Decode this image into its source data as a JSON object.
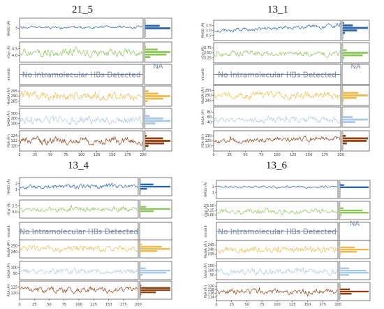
{
  "chart_data": [
    {
      "type": "line",
      "title": "21_5",
      "x_ticks": [
        "0",
        "25",
        "50",
        "75",
        "100",
        "125",
        "150",
        "175",
        "200"
      ],
      "xlim": [
        0,
        200
      ],
      "no_hb_text": "No Intramolecular HBs Detected",
      "na_text": "NA",
      "series": [
        {
          "ylabel": "RMSD (Å)",
          "yticks": [
            "3"
          ],
          "color": "#2a64ad",
          "range": [
            1.5,
            4.5
          ],
          "base": 3.1,
          "amp": 0.18,
          "drift": 0.08,
          "seed": 11
        },
        {
          "ylabel": "rGyr (Å)",
          "yticks": [
            "4.5",
            "4.0"
          ],
          "color": "#8cc65a",
          "range": [
            3.7,
            4.9
          ],
          "base": 4.3,
          "amp": 0.22,
          "drift": 0.0,
          "seed": 12
        },
        {
          "ylabel": "intraHB",
          "yticks": [],
          "color": "#7588a6",
          "range": [
            0,
            1
          ],
          "base": 0.5,
          "amp": 0,
          "drift": 0,
          "seed": 13,
          "flat": true
        },
        {
          "ylabel": "MolSA (Å²)",
          "yticks": [
            "295",
            "290",
            "285"
          ],
          "color": "#f0b94b",
          "range": [
            282,
            298
          ],
          "base": 290,
          "amp": 3.0,
          "drift": 0.0,
          "seed": 14
        },
        {
          "ylabel": "SASA (Å²)",
          "yticks": [
            "300",
            "200",
            "100"
          ],
          "color": "#a9c8e6",
          "range": [
            80,
            340
          ],
          "base": 185,
          "amp": 45,
          "drift": 0.0,
          "seed": 15
        },
        {
          "ylabel": "PSA (Å²)",
          "yticks": [
            "124",
            "122",
            "120"
          ],
          "color": "#8e3e0f",
          "range": [
            118,
            126
          ],
          "base": 122,
          "amp": 1.3,
          "drift": 0.0,
          "seed": 16
        }
      ]
    },
    {
      "type": "line",
      "title": "13_1",
      "x_ticks": [
        "0",
        "25",
        "50",
        "75",
        "100",
        "125",
        "150",
        "175",
        "200"
      ],
      "xlim": [
        0,
        200
      ],
      "no_hb_text": "No Intramolecular HBs Detected",
      "na_text": "NA",
      "series": [
        {
          "ylabel": "RMSD (Å)",
          "yticks": [
            "1.5",
            "1.0",
            "0.5"
          ],
          "color": "#2a64ad",
          "range": [
            0.3,
            1.6
          ],
          "base": 0.95,
          "amp": 0.12,
          "drift": 0.35,
          "seed": 21
        },
        {
          "ylabel": "rGyr (Å)",
          "yticks": [
            "3.75",
            "3.50",
            "3.25"
          ],
          "color": "#8cc65a",
          "range": [
            3.2,
            3.85
          ],
          "base": 3.5,
          "amp": 0.09,
          "drift": 0.0,
          "seed": 22
        },
        {
          "ylabel": "intraHB",
          "yticks": [],
          "color": "#7588a6",
          "range": [
            0,
            1
          ],
          "base": 0.5,
          "amp": 0,
          "drift": 0,
          "seed": 23,
          "flat": true
        },
        {
          "ylabel": "MolSA (Å²)",
          "yticks": [
            "255",
            "250",
            "245"
          ],
          "color": "#f0b94b",
          "range": [
            242,
            258
          ],
          "base": 250,
          "amp": 2.6,
          "drift": 0.0,
          "seed": 24
        },
        {
          "ylabel": "SASA (Å²)",
          "yticks": [
            "80",
            "60",
            "40"
          ],
          "color": "#a9c8e6",
          "range": [
            25,
            95
          ],
          "base": 50,
          "amp": 10,
          "drift": 0.0,
          "seed": 25
        },
        {
          "ylabel": "PSA (Å²)",
          "yticks": [
            "130",
            "125",
            "120"
          ],
          "color": "#8e3e0f",
          "range": [
            116,
            132
          ],
          "base": 124,
          "amp": 1.8,
          "drift": 2.5,
          "seed": 26
        }
      ]
    },
    {
      "type": "line",
      "title": "13_4",
      "x_ticks": [
        "0",
        "25",
        "50",
        "75",
        "100",
        "125",
        "150",
        "175",
        "200"
      ],
      "xlim": [
        0,
        200
      ],
      "no_hb_text": "No Intramolecular HBs Detected",
      "na_text": "",
      "series": [
        {
          "ylabel": "RMSD (Å)",
          "yticks": [
            "2",
            "1"
          ],
          "color": "#2a64ad",
          "range": [
            0.5,
            2.5
          ],
          "base": 1.5,
          "amp": 0.22,
          "drift": 0.0,
          "seed": 31
        },
        {
          "ylabel": "rGyr (Å)",
          "yticks": [
            "3.5",
            "3.0"
          ],
          "color": "#8cc65a",
          "range": [
            2.8,
            3.7
          ],
          "base": 3.25,
          "amp": 0.12,
          "drift": 0.0,
          "seed": 32
        },
        {
          "ylabel": "intraHB",
          "yticks": [],
          "color": "#7588a6",
          "range": [
            0,
            1
          ],
          "base": 0.5,
          "amp": 0,
          "drift": 0,
          "seed": 33,
          "flat": true
        },
        {
          "ylabel": "MolSA (Å²)",
          "yticks": [
            "250",
            "240"
          ],
          "color": "#f0b94b",
          "range": [
            236,
            256
          ],
          "base": 246,
          "amp": 3.0,
          "drift": 0.0,
          "seed": 34
        },
        {
          "ylabel": "SASA (Å²)",
          "yticks": [
            "100",
            "50"
          ],
          "color": "#a9c8e6",
          "range": [
            20,
            130
          ],
          "base": 70,
          "amp": 15,
          "drift": 0.0,
          "seed": 35
        },
        {
          "ylabel": "PSA (Å²)",
          "yticks": [
            "125",
            "120"
          ],
          "color": "#8e3e0f",
          "range": [
            116,
            130
          ],
          "base": 123,
          "amp": 2.0,
          "drift": 0.0,
          "seed": 36
        }
      ]
    },
    {
      "type": "line",
      "title": "13_6",
      "x_ticks": [
        "0",
        "25",
        "50",
        "75",
        "100",
        "125",
        "150",
        "175",
        "200"
      ],
      "xlim": [
        0,
        200
      ],
      "no_hb_text": "No Intramolecular HBs Detected",
      "na_text": "NA",
      "series": [
        {
          "ylabel": "RMSD (Å)",
          "yticks": [
            "2",
            "1"
          ],
          "color": "#2a64ad",
          "range": [
            0.3,
            2.4
          ],
          "base": 1.7,
          "amp": 0.12,
          "drift": 0.0,
          "seed": 41
        },
        {
          "ylabel": "rGyr (Å)",
          "yticks": [
            "3.50",
            "3.25",
            "3.00"
          ],
          "color": "#8cc65a",
          "range": [
            2.95,
            3.65
          ],
          "base": 3.25,
          "amp": 0.09,
          "drift": 0.0,
          "seed": 42
        },
        {
          "ylabel": "intraHB",
          "yticks": [],
          "color": "#7588a6",
          "range": [
            0,
            1
          ],
          "base": 0.5,
          "amp": 0,
          "drift": 0,
          "seed": 43,
          "flat": true
        },
        {
          "ylabel": "MolSA (Å²)",
          "yticks": [
            "245",
            "240",
            "235"
          ],
          "color": "#f0b94b",
          "range": [
            232,
            250
          ],
          "base": 241,
          "amp": 2.8,
          "drift": 0.0,
          "seed": 44
        },
        {
          "ylabel": "SASA (Å²)",
          "yticks": [
            "150",
            "100",
            "50"
          ],
          "color": "#a9c8e6",
          "range": [
            30,
            170
          ],
          "base": 90,
          "amp": 22,
          "drift": 0.0,
          "seed": 45
        },
        {
          "ylabel": "PSA (Å²)",
          "yticks": [
            "120",
            "118",
            "116",
            "114"
          ],
          "color": "#8e3e0f",
          "range": [
            112,
            122
          ],
          "base": 117,
          "amp": 1.4,
          "drift": 0.0,
          "seed": 46
        }
      ]
    }
  ]
}
